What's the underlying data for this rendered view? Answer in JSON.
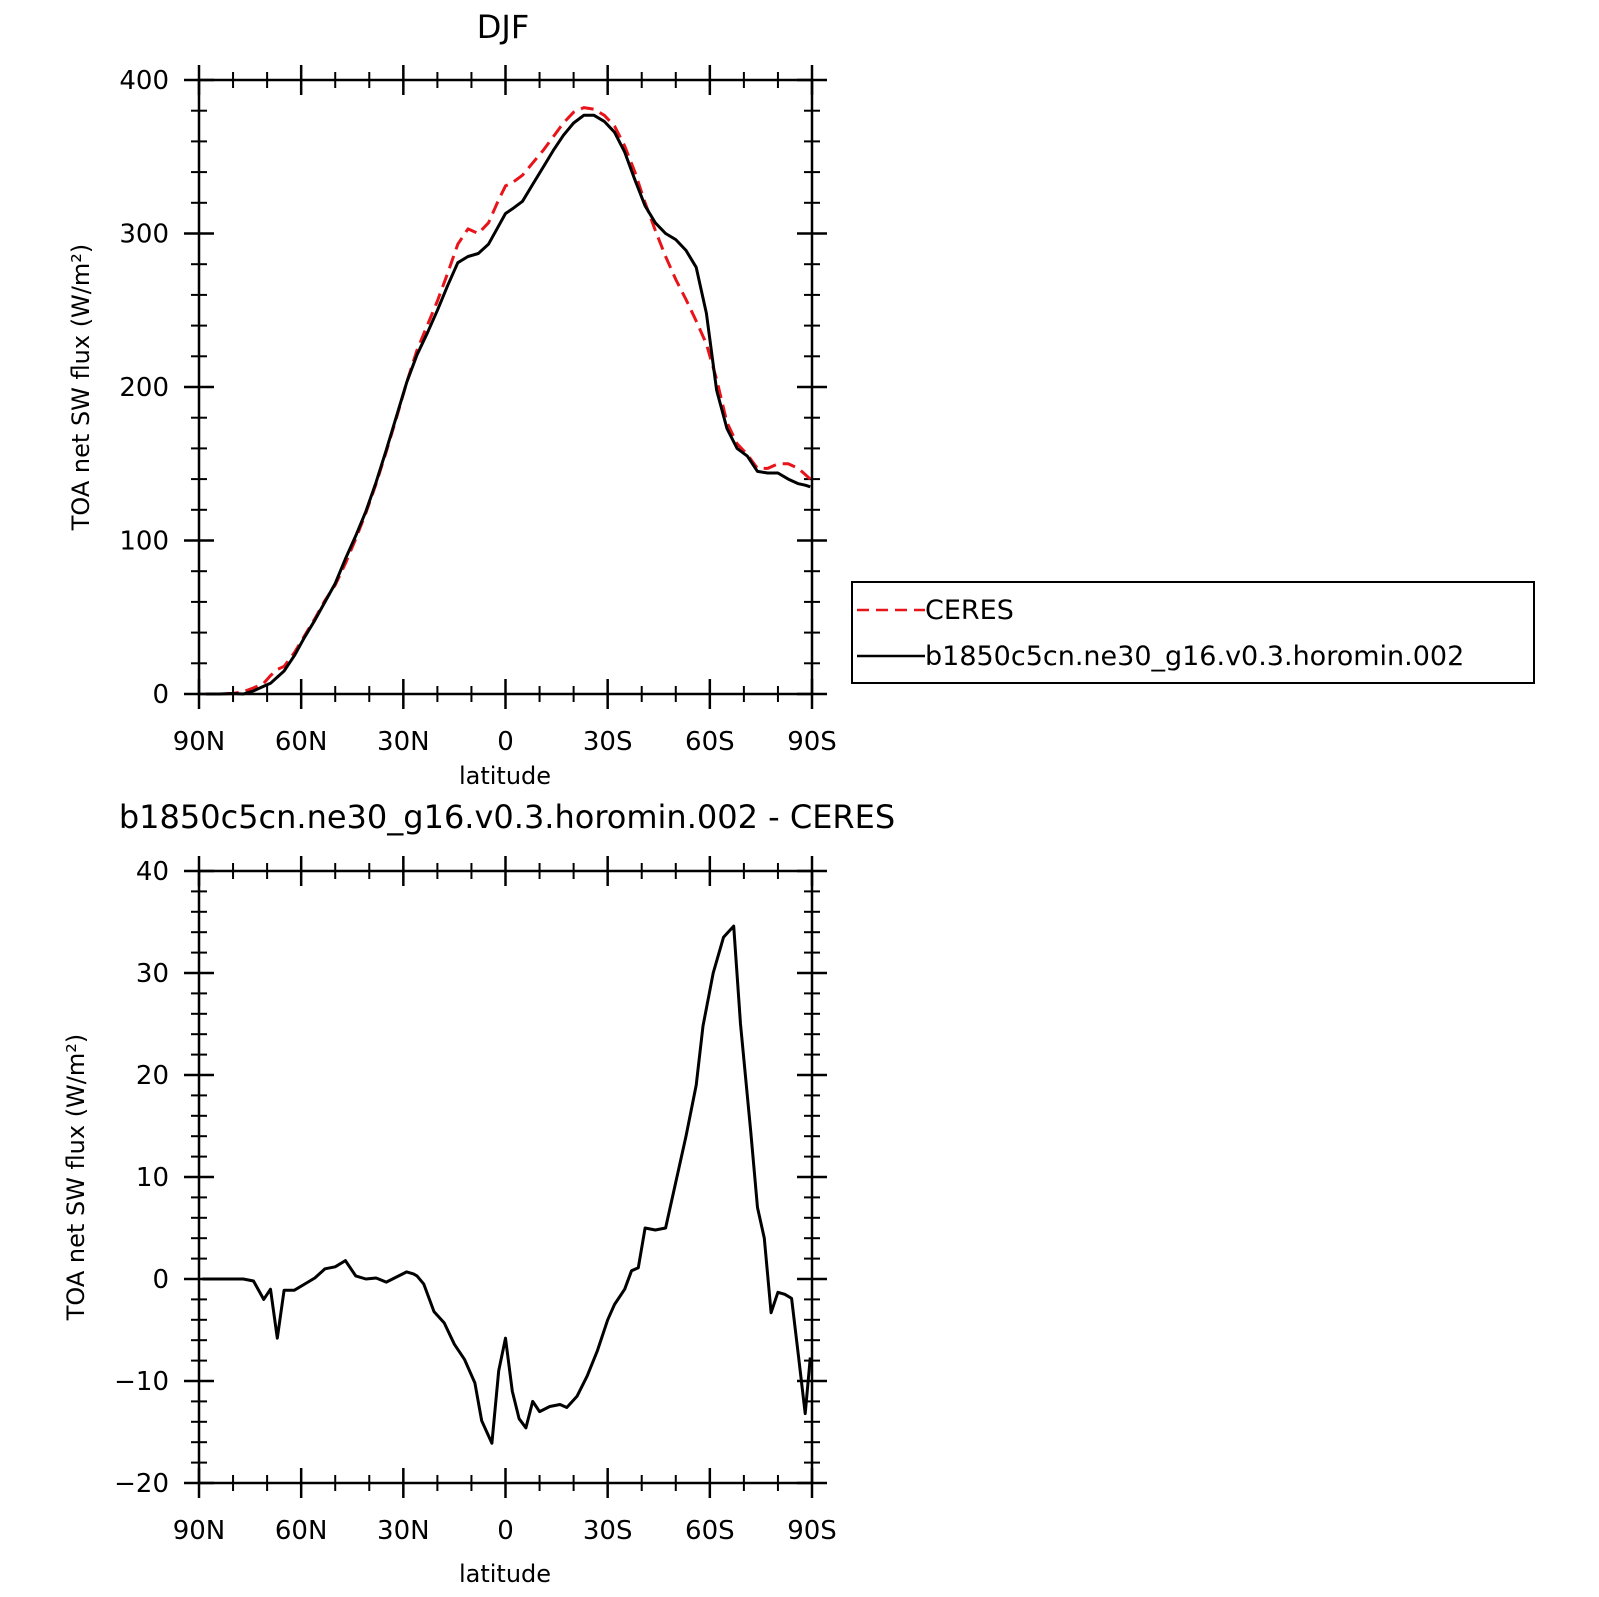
{
  "colors": {
    "ceres": "#e8141a",
    "model": "#000000"
  },
  "chart_data": [
    {
      "type": "line",
      "title": "DJF",
      "xlabel": "latitude",
      "ylabel": "TOA net SW flux (W/m²)",
      "xlim": [
        90,
        -90
      ],
      "ylim": [
        0,
        400
      ],
      "xticks": [
        90,
        60,
        30,
        0,
        -30,
        -60,
        -90
      ],
      "xtick_labels": [
        "90N",
        "60N",
        "30N",
        "0",
        "30S",
        "60S",
        "90S"
      ],
      "yticks": [
        0,
        100,
        200,
        300,
        400
      ],
      "ytick_labels": [
        "0",
        "100",
        "200",
        "300",
        "400"
      ],
      "legend": {
        "placement": "right",
        "entries": [
          "CERES",
          "b1850c5cn.ne30_g16.v0.3.horomin.002"
        ]
      },
      "series": [
        {
          "name": "CERES",
          "style": "dashed",
          "color": "#e8141a",
          "x": [
            88,
            84,
            80,
            77,
            74,
            71,
            69,
            67,
            65,
            62,
            59,
            56,
            53,
            50,
            47,
            44,
            41,
            38,
            35,
            32,
            29,
            26,
            23,
            20,
            17,
            14,
            11,
            8,
            5,
            2,
            0,
            -2,
            -5,
            -8,
            -11,
            -14,
            -17,
            -20,
            -23,
            -26,
            -29,
            -32,
            -35,
            -38,
            -41,
            -44,
            -47,
            -50,
            -53,
            -56,
            -59,
            -62,
            -65,
            -68,
            -71,
            -74,
            -77,
            -80,
            -83,
            -86,
            -88,
            -89.5
          ],
          "y": [
            0,
            0,
            0.3,
            1.5,
            4,
            7,
            12,
            16,
            18,
            27,
            38,
            49,
            61,
            71,
            85,
            101,
            118,
            137,
            158,
            180,
            203,
            224,
            240,
            256,
            274,
            293,
            303,
            300,
            307,
            322,
            331,
            333,
            338,
            346,
            354,
            363,
            372,
            379,
            382,
            381,
            377,
            370,
            357,
            340,
            320,
            302,
            285,
            270,
            257,
            243,
            228,
            205,
            177,
            163,
            156,
            147,
            147,
            150,
            150,
            147,
            143,
            140
          ]
        },
        {
          "name": "b1850c5cn.ne30_g16.v0.3.horomin.002",
          "style": "solid",
          "color": "#000000",
          "x": [
            88,
            84,
            80,
            77,
            74,
            71,
            69,
            67,
            65,
            62,
            59,
            56,
            53,
            50,
            47,
            44,
            41,
            38,
            35,
            32,
            29,
            26,
            23,
            20,
            17,
            14,
            11,
            8,
            5,
            2,
            0,
            -2,
            -5,
            -8,
            -11,
            -14,
            -17,
            -20,
            -23,
            -26,
            -29,
            -32,
            -35,
            -38,
            -41,
            -44,
            -47,
            -50,
            -53,
            -56,
            -59,
            -62,
            -65,
            -68,
            -71,
            -74,
            -77,
            -80,
            -83,
            -86,
            -88,
            -89.5
          ],
          "y": [
            0,
            0,
            0.3,
            0,
            2,
            5,
            7,
            11,
            15,
            25,
            37,
            48,
            60,
            72,
            88,
            103,
            119,
            138,
            159,
            181,
            203,
            221,
            235,
            250,
            266,
            281,
            285,
            287,
            293,
            305,
            313,
            316,
            321,
            332,
            343,
            354,
            364,
            372,
            377,
            377,
            373,
            366,
            353,
            335,
            318,
            307,
            300,
            296,
            289,
            278,
            248,
            198,
            173,
            160,
            155,
            145,
            144,
            144,
            140,
            137,
            136,
            135
          ]
        }
      ]
    },
    {
      "type": "line",
      "title": "b1850c5cn.ne30_g16.v0.3.horomin.002 - CERES",
      "xlabel": "latitude",
      "ylabel": "TOA net SW flux (W/m²)",
      "xlim": [
        90,
        -90
      ],
      "ylim": [
        -20,
        40
      ],
      "xticks": [
        90,
        60,
        30,
        0,
        -30,
        -60,
        -90
      ],
      "xtick_labels": [
        "90N",
        "60N",
        "30N",
        "0",
        "30S",
        "60S",
        "90S"
      ],
      "yticks": [
        -20,
        -10,
        0,
        10,
        20,
        30,
        40
      ],
      "ytick_labels": [
        "−20",
        "−10",
        "0",
        "10",
        "20",
        "30",
        "40"
      ],
      "series": [
        {
          "style": "solid",
          "color": "#000000",
          "x": [
            89,
            86,
            83,
            80,
            77,
            74,
            71,
            69,
            67,
            65,
            62,
            59,
            56,
            53,
            50,
            47,
            44,
            41,
            38,
            35,
            32,
            29,
            27,
            26,
            24,
            21,
            18,
            15,
            12,
            9,
            7,
            4,
            2,
            0,
            -2,
            -4,
            -6,
            -8,
            -10,
            -13,
            -16,
            -18,
            -21,
            -24,
            -27,
            -30,
            -32,
            -35,
            -37,
            -39,
            -41,
            -44,
            -47,
            -50,
            -53,
            -56,
            -58,
            -61,
            -64,
            -67,
            -69,
            -72,
            -74,
            -76,
            -78,
            -80,
            -82,
            -84,
            -86,
            -88,
            -89.5
          ],
          "y": [
            0,
            0,
            0,
            0,
            0,
            -0.2,
            -2,
            -1,
            -5.8,
            -1.1,
            -1.1,
            -0.5,
            0.1,
            1,
            1.2,
            1.8,
            0.3,
            0,
            0.1,
            -0.3,
            0.2,
            0.7,
            0.5,
            0.3,
            -0.5,
            -3.2,
            -4.3,
            -6.4,
            -7.9,
            -10.2,
            -13.9,
            -16.1,
            -9,
            -5.8,
            -11,
            -13.7,
            -14.6,
            -12,
            -13,
            -12.5,
            -12.3,
            -12.6,
            -11.5,
            -9.5,
            -7,
            -4,
            -2.5,
            -1,
            0.8,
            1.1,
            5,
            4.8,
            5,
            9.5,
            14,
            19,
            24.8,
            30,
            33.5,
            34.6,
            25,
            14.5,
            7,
            4,
            -3.3,
            -1.3,
            -1.5,
            -1.9,
            -7.5,
            -13.2,
            -7.7
          ]
        }
      ]
    }
  ]
}
